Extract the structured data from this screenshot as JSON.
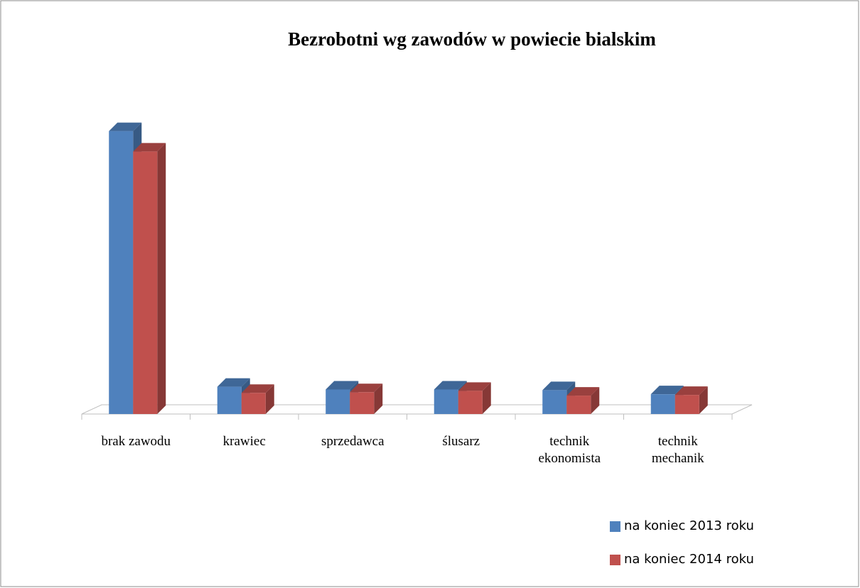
{
  "chart_data": {
    "type": "bar3d",
    "title": "Bezrobotni wg zawodów w powiecie bialskim",
    "categories": [
      "brak zawodu",
      "krawiec",
      "sprzedawca",
      "ślusarz",
      "technik ekonomista",
      "technik mechanik"
    ],
    "series": [
      {
        "name": "na koniec 2013 roku",
        "color": "#4f81bd",
        "values": [
          415,
          40,
          36,
          36,
          35,
          29
        ]
      },
      {
        "name": "na koniec 2014 roku",
        "color": "#c0504d",
        "values": [
          385,
          31,
          32,
          34,
          27,
          28
        ]
      }
    ],
    "ylim": [
      0,
      500
    ]
  }
}
